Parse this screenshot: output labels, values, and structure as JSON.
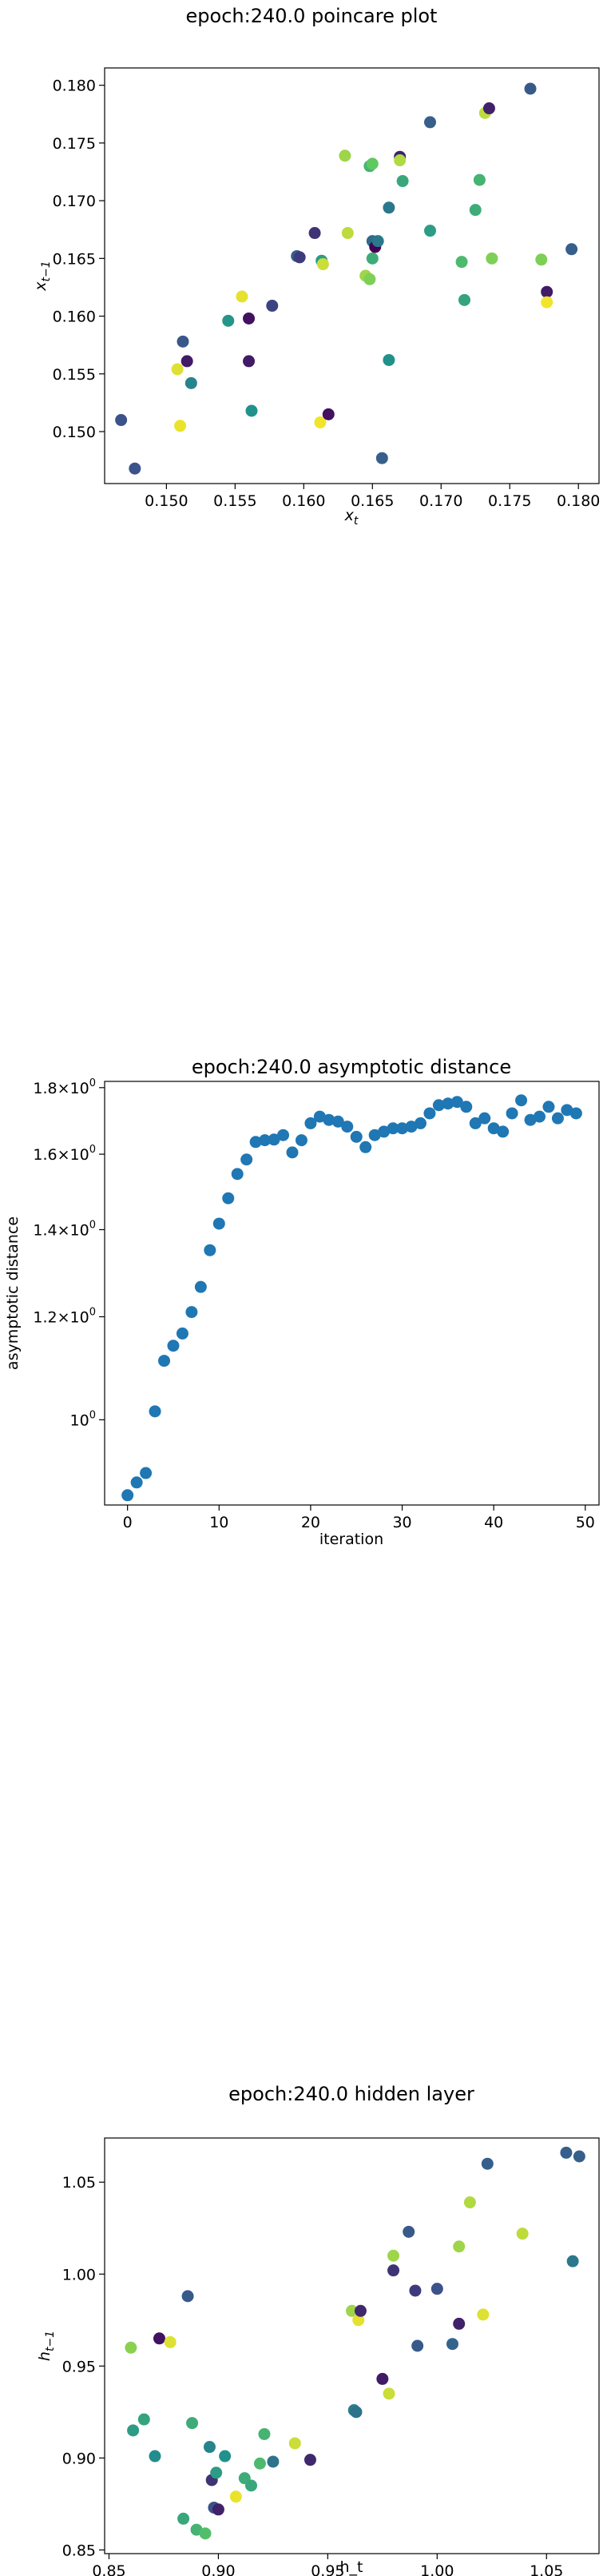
{
  "chart_data": [
    {
      "type": "scatter",
      "title": "epoch:240.0 poincare plot",
      "xlabel": "x_t",
      "ylabel": "x_{t-1}",
      "xlim": [
        0.1455,
        0.1815
      ],
      "ylim": [
        0.1455,
        0.1815
      ],
      "xticks": [
        0.15,
        0.155,
        0.16,
        0.165,
        0.17,
        0.175,
        0.18
      ],
      "xtick_labels": [
        "0.150",
        "0.155",
        "0.160",
        "0.165",
        "0.170",
        "0.175",
        "0.180"
      ],
      "yticks": [
        0.15,
        0.155,
        0.16,
        0.165,
        0.17,
        0.175,
        0.18
      ],
      "ytick_labels": [
        "0.150",
        "0.155",
        "0.160",
        "0.165",
        "0.170",
        "0.175",
        "0.180"
      ],
      "colormap": "viridis",
      "points": [
        {
          "x": 0.1467,
          "y": 0.151,
          "c": 0.25
        },
        {
          "x": 0.1477,
          "y": 0.1468,
          "c": 0.25
        },
        {
          "x": 0.1508,
          "y": 0.1554,
          "c": 0.95
        },
        {
          "x": 0.151,
          "y": 0.1505,
          "c": 0.97
        },
        {
          "x": 0.1512,
          "y": 0.1578,
          "c": 0.27
        },
        {
          "x": 0.1515,
          "y": 0.1561,
          "c": 0.08
        },
        {
          "x": 0.1518,
          "y": 0.1542,
          "c": 0.45
        },
        {
          "x": 0.1545,
          "y": 0.1596,
          "c": 0.52
        },
        {
          "x": 0.1555,
          "y": 0.1617,
          "c": 0.96
        },
        {
          "x": 0.156,
          "y": 0.1598,
          "c": 0.05
        },
        {
          "x": 0.156,
          "y": 0.1561,
          "c": 0.08
        },
        {
          "x": 0.1562,
          "y": 0.1518,
          "c": 0.5
        },
        {
          "x": 0.1577,
          "y": 0.1609,
          "c": 0.2
        },
        {
          "x": 0.1595,
          "y": 0.1652,
          "c": 0.3
        },
        {
          "x": 0.1597,
          "y": 0.1651,
          "c": 0.18
        },
        {
          "x": 0.1608,
          "y": 0.1672,
          "c": 0.15
        },
        {
          "x": 0.1612,
          "y": 0.1508,
          "c": 0.98
        },
        {
          "x": 0.1613,
          "y": 0.1648,
          "c": 0.55
        },
        {
          "x": 0.1614,
          "y": 0.1645,
          "c": 0.92
        },
        {
          "x": 0.1618,
          "y": 0.1515,
          "c": 0.05
        },
        {
          "x": 0.163,
          "y": 0.1739,
          "c": 0.85
        },
        {
          "x": 0.1632,
          "y": 0.1672,
          "c": 0.9
        },
        {
          "x": 0.1645,
          "y": 0.1635,
          "c": 0.85
        },
        {
          "x": 0.1648,
          "y": 0.1632,
          "c": 0.8
        },
        {
          "x": 0.1648,
          "y": 0.173,
          "c": 0.65
        },
        {
          "x": 0.165,
          "y": 0.1732,
          "c": 0.75
        },
        {
          "x": 0.165,
          "y": 0.165,
          "c": 0.62
        },
        {
          "x": 0.165,
          "y": 0.1665,
          "c": 0.35
        },
        {
          "x": 0.1652,
          "y": 0.166,
          "c": 0.0
        },
        {
          "x": 0.1654,
          "y": 0.1665,
          "c": 0.4
        },
        {
          "x": 0.1657,
          "y": 0.1477,
          "c": 0.3
        },
        {
          "x": 0.1662,
          "y": 0.1694,
          "c": 0.4
        },
        {
          "x": 0.1662,
          "y": 0.1562,
          "c": 0.5
        },
        {
          "x": 0.167,
          "y": 0.1738,
          "c": 0.1
        },
        {
          "x": 0.167,
          "y": 0.1735,
          "c": 0.88
        },
        {
          "x": 0.1672,
          "y": 0.1717,
          "c": 0.6
        },
        {
          "x": 0.1692,
          "y": 0.1768,
          "c": 0.3
        },
        {
          "x": 0.1692,
          "y": 0.1674,
          "c": 0.55
        },
        {
          "x": 0.1715,
          "y": 0.1647,
          "c": 0.68
        },
        {
          "x": 0.1717,
          "y": 0.1614,
          "c": 0.58
        },
        {
          "x": 0.1725,
          "y": 0.1692,
          "c": 0.62
        },
        {
          "x": 0.1728,
          "y": 0.1718,
          "c": 0.65
        },
        {
          "x": 0.1732,
          "y": 0.1776,
          "c": 0.9
        },
        {
          "x": 0.1735,
          "y": 0.178,
          "c": 0.1
        },
        {
          "x": 0.1737,
          "y": 0.165,
          "c": 0.8
        },
        {
          "x": 0.1765,
          "y": 0.1797,
          "c": 0.28
        },
        {
          "x": 0.1773,
          "y": 0.1649,
          "c": 0.8
        },
        {
          "x": 0.1777,
          "y": 0.1621,
          "c": 0.08
        },
        {
          "x": 0.1777,
          "y": 0.1612,
          "c": 0.98
        },
        {
          "x": 0.1795,
          "y": 0.1658,
          "c": 0.3
        }
      ]
    },
    {
      "type": "scatter",
      "title": "epoch:240.0 asymptotic distance",
      "xlabel": "iteration",
      "ylabel": "asymptotic distance",
      "yscale": "log",
      "xlim": [
        -2.5,
        51.5
      ],
      "ylim": [
        0.86,
        1.82
      ],
      "xticks": [
        0,
        10,
        20,
        30,
        40,
        50
      ],
      "xtick_labels": [
        "0",
        "10",
        "20",
        "30",
        "40",
        "50"
      ],
      "yticks": [
        1.0,
        1.2,
        1.4,
        1.6,
        1.8
      ],
      "ytick_bases": [
        "10",
        "1.2×10",
        "1.4×10",
        "1.6×10",
        "1.8×10"
      ],
      "ytick_exponent": "0",
      "color": "#1f77b4",
      "x": [
        0,
        1,
        2,
        3,
        4,
        5,
        6,
        7,
        8,
        9,
        10,
        11,
        12,
        13,
        14,
        15,
        16,
        17,
        18,
        19,
        20,
        21,
        22,
        23,
        24,
        25,
        26,
        27,
        28,
        29,
        30,
        31,
        32,
        33,
        34,
        35,
        36,
        37,
        38,
        39,
        40,
        41,
        42,
        43,
        44,
        45,
        46,
        47,
        48,
        49
      ],
      "y": [
        0.875,
        0.895,
        0.91,
        1.015,
        1.11,
        1.14,
        1.165,
        1.21,
        1.265,
        1.35,
        1.415,
        1.48,
        1.545,
        1.585,
        1.635,
        1.64,
        1.642,
        1.655,
        1.605,
        1.64,
        1.69,
        1.71,
        1.7,
        1.695,
        1.68,
        1.65,
        1.62,
        1.655,
        1.665,
        1.675,
        1.675,
        1.68,
        1.69,
        1.72,
        1.745,
        1.75,
        1.755,
        1.74,
        1.69,
        1.705,
        1.675,
        1.665,
        1.72,
        1.76,
        1.7,
        1.71,
        1.74,
        1.705,
        1.73,
        1.72
      ]
    },
    {
      "type": "scatter",
      "title": "epoch:240.0 hidden layer",
      "xlabel": "h_t",
      "ylabel": "h_{t-1}",
      "xlim": [
        0.848,
        1.074
      ],
      "ylim": [
        0.848,
        1.074
      ],
      "xticks": [
        0.85,
        0.9,
        0.95,
        1.0,
        1.05
      ],
      "xtick_labels": [
        "0.85",
        "0.90",
        "0.95",
        "1.00",
        "1.05"
      ],
      "yticks": [
        0.85,
        0.9,
        0.95,
        1.0,
        1.05
      ],
      "ytick_labels": [
        "0.85",
        "0.90",
        "0.95",
        "1.00",
        "1.05"
      ],
      "colormap": "viridis",
      "points": [
        {
          "x": 0.86,
          "y": 0.96,
          "c": 0.82
        },
        {
          "x": 0.861,
          "y": 0.915,
          "c": 0.55
        },
        {
          "x": 0.866,
          "y": 0.921,
          "c": 0.58
        },
        {
          "x": 0.871,
          "y": 0.901,
          "c": 0.48
        },
        {
          "x": 0.873,
          "y": 0.965,
          "c": 0.05
        },
        {
          "x": 0.878,
          "y": 0.963,
          "c": 0.95
        },
        {
          "x": 0.884,
          "y": 0.867,
          "c": 0.6
        },
        {
          "x": 0.886,
          "y": 0.988,
          "c": 0.28
        },
        {
          "x": 0.888,
          "y": 0.919,
          "c": 0.62
        },
        {
          "x": 0.89,
          "y": 0.861,
          "c": 0.65
        },
        {
          "x": 0.894,
          "y": 0.859,
          "c": 0.7
        },
        {
          "x": 0.896,
          "y": 0.906,
          "c": 0.45
        },
        {
          "x": 0.897,
          "y": 0.888,
          "c": 0.15
        },
        {
          "x": 0.898,
          "y": 0.873,
          "c": 0.25
        },
        {
          "x": 0.899,
          "y": 0.892,
          "c": 0.55
        },
        {
          "x": 0.9,
          "y": 0.872,
          "c": 0.1
        },
        {
          "x": 0.903,
          "y": 0.901,
          "c": 0.5
        },
        {
          "x": 0.908,
          "y": 0.879,
          "c": 0.97
        },
        {
          "x": 0.912,
          "y": 0.889,
          "c": 0.62
        },
        {
          "x": 0.915,
          "y": 0.885,
          "c": 0.6
        },
        {
          "x": 0.919,
          "y": 0.897,
          "c": 0.68
        },
        {
          "x": 0.921,
          "y": 0.913,
          "c": 0.65
        },
        {
          "x": 0.925,
          "y": 0.898,
          "c": 0.38
        },
        {
          "x": 0.935,
          "y": 0.908,
          "c": 0.92
        },
        {
          "x": 0.942,
          "y": 0.899,
          "c": 0.12
        },
        {
          "x": 0.961,
          "y": 0.98,
          "c": 0.85
        },
        {
          "x": 0.962,
          "y": 0.926,
          "c": 0.42
        },
        {
          "x": 0.963,
          "y": 0.925,
          "c": 0.38
        },
        {
          "x": 0.964,
          "y": 0.975,
          "c": 0.96
        },
        {
          "x": 0.965,
          "y": 0.98,
          "c": 0.12
        },
        {
          "x": 0.975,
          "y": 0.943,
          "c": 0.08
        },
        {
          "x": 0.978,
          "y": 0.935,
          "c": 0.92
        },
        {
          "x": 0.98,
          "y": 1.01,
          "c": 0.85
        },
        {
          "x": 0.98,
          "y": 1.002,
          "c": 0.15
        },
        {
          "x": 0.987,
          "y": 1.023,
          "c": 0.28
        },
        {
          "x": 0.99,
          "y": 0.991,
          "c": 0.18
        },
        {
          "x": 0.991,
          "y": 0.961,
          "c": 0.28
        },
        {
          "x": 1.0,
          "y": 0.992,
          "c": 0.25
        },
        {
          "x": 1.007,
          "y": 0.962,
          "c": 0.32
        },
        {
          "x": 1.01,
          "y": 0.973,
          "c": 0.1
        },
        {
          "x": 1.01,
          "y": 1.015,
          "c": 0.85
        },
        {
          "x": 1.015,
          "y": 1.039,
          "c": 0.88
        },
        {
          "x": 1.021,
          "y": 0.978,
          "c": 0.95
        },
        {
          "x": 1.023,
          "y": 1.06,
          "c": 0.3
        },
        {
          "x": 1.039,
          "y": 1.022,
          "c": 0.9
        },
        {
          "x": 1.059,
          "y": 1.066,
          "c": 0.3
        },
        {
          "x": 1.062,
          "y": 1.007,
          "c": 0.4
        },
        {
          "x": 1.065,
          "y": 1.064,
          "c": 0.3
        }
      ]
    }
  ]
}
